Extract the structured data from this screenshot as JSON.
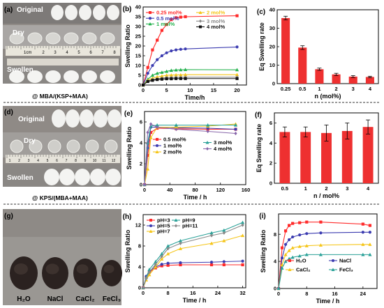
{
  "panels": [
    {
      "id": "a",
      "label": "(a)",
      "captions": {
        "original": "Original",
        "dry": "Dry",
        "swollen": "Swollen",
        "ruler": "1cm"
      },
      "ruler_numbers": [
        "2",
        "3",
        "4",
        "5",
        "6",
        "7",
        "8"
      ],
      "footer": "@ MBA/(KSP+MAA)"
    },
    {
      "id": "d",
      "label": "(d)",
      "captions": {
        "original": "Original",
        "dry": "Dry",
        "swollen": "Swollen"
      },
      "ruler_numbers": [
        "1",
        "2",
        "3",
        "4",
        "5",
        "6",
        "7",
        "8",
        "9",
        "10",
        "11",
        "12"
      ],
      "footer": "@ KPS/(MBA+MAA)"
    },
    {
      "id": "g",
      "label": "(g)",
      "captions": {
        "items": [
          "H₂O",
          "NaCl",
          "CaCl₂",
          "FeCl₃"
        ]
      }
    }
  ],
  "chart_data": [
    {
      "id": "b",
      "label": "(b)",
      "type": "line",
      "xlabel": "Time/h",
      "ylabel": "Swelling Ratio",
      "xlim": [
        0,
        22
      ],
      "ylim": [
        0,
        40
      ],
      "xticks": [
        0,
        5,
        10,
        15,
        20
      ],
      "yticks": [
        0,
        5,
        10,
        15,
        20,
        25,
        30,
        35,
        40
      ],
      "series": [
        {
          "name": "0.25 mol%",
          "color": "#ff2a2a",
          "marker": "square",
          "x": [
            0,
            1,
            2,
            3,
            4,
            5,
            6,
            7,
            8,
            9,
            20
          ],
          "y": [
            0,
            9,
            18,
            23,
            28,
            31,
            33.5,
            34.5,
            34.8,
            35,
            35.5
          ]
        },
        {
          "name": "0.5 mol%",
          "color": "#3b3bb0",
          "marker": "circle",
          "x": [
            0,
            1,
            2,
            3,
            4,
            5,
            6,
            7,
            8,
            9,
            20
          ],
          "y": [
            0,
            6,
            10,
            13,
            15,
            16.5,
            17.5,
            18,
            18.3,
            18.5,
            19.5
          ]
        },
        {
          "name": "1 mol%",
          "color": "#22b14c",
          "marker": "triangle",
          "x": [
            0,
            1,
            2,
            3,
            4,
            5,
            6,
            7,
            8,
            9,
            20
          ],
          "y": [
            0,
            3,
            5,
            6,
            6.5,
            7,
            7.5,
            7.7,
            7.8,
            7.9,
            7.8
          ]
        },
        {
          "name": "2 mol%",
          "color": "#f5c518",
          "marker": "triangle",
          "x": [
            0,
            1,
            2,
            3,
            4,
            5,
            6,
            7,
            8,
            9,
            20
          ],
          "y": [
            0,
            2.5,
            3.5,
            4.2,
            4.6,
            5,
            5.1,
            5.2,
            5.2,
            5.3,
            5.3
          ]
        },
        {
          "name": "3 mol%",
          "color": "#888888",
          "marker": "diamond",
          "x": [
            0,
            1,
            2,
            3,
            4,
            5,
            6,
            7,
            8,
            9,
            20
          ],
          "y": [
            0,
            2,
            2.8,
            3.2,
            3.5,
            3.8,
            3.8,
            3.9,
            3.9,
            4,
            4
          ]
        },
        {
          "name": "4 mol%",
          "color": "#111111",
          "marker": "square",
          "x": [
            0,
            1,
            2,
            3,
            4,
            5,
            6,
            7,
            8,
            9,
            20
          ],
          "y": [
            0,
            1.8,
            2.4,
            2.8,
            3,
            3.2,
            3.2,
            3.3,
            3.3,
            3.3,
            3.3
          ]
        }
      ],
      "legend": "top-left"
    },
    {
      "id": "c",
      "label": "(c)",
      "type": "bar",
      "xlabel": "n (mol%)",
      "ylabel": "Eq Swelling rate",
      "categories": [
        "0.25",
        "0.5",
        "1",
        "2",
        "3",
        "4"
      ],
      "values": [
        35.5,
        19.5,
        7.8,
        5,
        3.8,
        3.6
      ],
      "errors": [
        1,
        1,
        0.6,
        0.6,
        0.5,
        0.4
      ],
      "ylim": [
        0,
        40
      ],
      "yticks": [
        0,
        10,
        20,
        30,
        40
      ],
      "color": "#ee3030"
    },
    {
      "id": "e",
      "label": "(e)",
      "type": "line",
      "xlabel": "Time / h",
      "ylabel": "Swelling Ratio",
      "xlim": [
        0,
        160
      ],
      "ylim": [
        0,
        7
      ],
      "xticks": [
        0,
        40,
        80,
        120,
        160
      ],
      "yticks": [
        0,
        2,
        4,
        6
      ],
      "series": [
        {
          "name": "0.5 mol%",
          "color": "#ff2a2a",
          "marker": "square",
          "x": [
            0,
            5,
            10,
            20,
            50,
            100,
            144
          ],
          "y": [
            0,
            2.8,
            5,
            5.4,
            5.35,
            5.3,
            5.3
          ]
        },
        {
          "name": "1 mol%",
          "color": "#3b3bb0",
          "marker": "circle",
          "x": [
            0,
            5,
            10,
            20,
            50,
            100,
            144
          ],
          "y": [
            0,
            3.5,
            5.5,
            5.5,
            5.45,
            5.4,
            5.3
          ]
        },
        {
          "name": "2 mol%",
          "color": "#f5c518",
          "marker": "triangle",
          "x": [
            0,
            5,
            10,
            20,
            50,
            100,
            144
          ],
          "y": [
            0,
            1.5,
            4.5,
            5.5,
            5.5,
            5.6,
            5.8
          ]
        },
        {
          "name": "3 mol%",
          "color": "#2aa198",
          "marker": "triangle",
          "x": [
            0,
            5,
            10,
            20,
            50,
            100,
            144
          ],
          "y": [
            0,
            4,
            5.6,
            5.7,
            5.7,
            5.7,
            5.7
          ]
        },
        {
          "name": "4 mol%",
          "color": "#8866aa",
          "marker": "diamond",
          "x": [
            0,
            5,
            10,
            20,
            50,
            100,
            144
          ],
          "y": [
            0,
            5,
            5.8,
            5.5,
            5.3,
            5.1,
            4.9
          ]
        }
      ],
      "legend": "bottom-center"
    },
    {
      "id": "f",
      "label": "(f)",
      "type": "bar",
      "xlabel": "n / mol%",
      "ylabel": "Eq Swelling rate",
      "categories": [
        "0.5",
        "1",
        "2",
        "3",
        "4"
      ],
      "values": [
        5.1,
        5.1,
        5.0,
        5.2,
        5.6
      ],
      "errors": [
        0.5,
        0.5,
        0.8,
        0.8,
        0.7
      ],
      "ylim": [
        0,
        7
      ],
      "yticks": [
        0,
        2,
        4,
        6
      ],
      "color": "#ee3030"
    },
    {
      "id": "h",
      "label": "(h)",
      "type": "line",
      "xlabel": "Time / h",
      "ylabel": "Swelling Ratio",
      "xlim": [
        0,
        33
      ],
      "ylim": [
        0,
        14
      ],
      "xticks": [
        0,
        8,
        16,
        24,
        32
      ],
      "yticks": [
        0,
        4,
        8,
        12
      ],
      "series": [
        {
          "name": "pH=3",
          "color": "#ff2a2a",
          "marker": "square",
          "x": [
            0,
            1,
            2,
            4,
            6,
            8,
            12,
            22,
            26,
            32
          ],
          "y": [
            0,
            2,
            3,
            3.8,
            4.2,
            4.3,
            4.4,
            4.4,
            4.4,
            4.4
          ]
        },
        {
          "name": "pH=5",
          "color": "#3b3bb0",
          "marker": "circle",
          "x": [
            0,
            1,
            2,
            4,
            6,
            8,
            12,
            22,
            26,
            32
          ],
          "y": [
            0,
            2.2,
            3.2,
            4,
            4.5,
            4.7,
            4.8,
            4.9,
            5,
            5.1
          ]
        },
        {
          "name": "pH=7",
          "color": "#f5c518",
          "marker": "triangle",
          "x": [
            0,
            1,
            2,
            4,
            6,
            8,
            12,
            22,
            26,
            32
          ],
          "y": [
            0,
            1.5,
            2.5,
            4,
            5.5,
            6.5,
            7.5,
            8.5,
            9,
            10
          ]
        },
        {
          "name": "pH=9",
          "color": "#2aa198",
          "marker": "triangle",
          "x": [
            0,
            1,
            2,
            4,
            6,
            8,
            12,
            22,
            26,
            32
          ],
          "y": [
            0,
            2,
            3.5,
            5,
            6.5,
            8,
            9,
            10.5,
            11,
            12.5
          ]
        },
        {
          "name": "pH=11",
          "color": "#888888",
          "marker": "diamond",
          "x": [
            0,
            1,
            2,
            4,
            6,
            8,
            12,
            22,
            26,
            32
          ],
          "y": [
            0,
            1.8,
            3,
            4.5,
            6,
            7.5,
            8.5,
            10,
            10.5,
            12
          ]
        }
      ],
      "legend": "top-left"
    },
    {
      "id": "i",
      "label": "(i)",
      "type": "line",
      "xlabel": "Time / h",
      "ylabel": "Swelling Ratio",
      "xlim": [
        0,
        28
      ],
      "ylim": [
        0,
        11
      ],
      "xticks": [
        0,
        8,
        16,
        24
      ],
      "yticks": [
        0,
        4,
        8
      ],
      "series": [
        {
          "name": "H₂O",
          "color": "#ff2a2a",
          "marker": "square",
          "x": [
            0,
            1,
            2,
            3,
            4,
            6,
            8,
            12,
            24,
            26
          ],
          "y": [
            0,
            6,
            8.5,
            9.3,
            9.6,
            9.7,
            9.8,
            9.8,
            9.5,
            9.3
          ]
        },
        {
          "name": "NaCl",
          "color": "#3b3bb0",
          "marker": "circle",
          "x": [
            0,
            1,
            2,
            3,
            4,
            6,
            8,
            12,
            24,
            26
          ],
          "y": [
            0,
            4.5,
            6.5,
            7.2,
            7.6,
            7.9,
            8.1,
            8.2,
            8.3,
            8.3
          ]
        },
        {
          "name": "CaCl₂",
          "color": "#f5c518",
          "marker": "triangle",
          "x": [
            0,
            1,
            2,
            3,
            4,
            6,
            8,
            12,
            24,
            26
          ],
          "y": [
            0,
            3.5,
            5,
            5.6,
            6,
            6.2,
            6.3,
            6.4,
            6.5,
            6.5
          ]
        },
        {
          "name": "FeCl₃",
          "color": "#2aa198",
          "marker": "triangle",
          "x": [
            0,
            1,
            2,
            3,
            4,
            6,
            8,
            12,
            24,
            26
          ],
          "y": [
            0,
            3,
            4,
            4.4,
            4.6,
            4.8,
            5,
            5,
            5,
            5
          ]
        }
      ],
      "legend": "bottom-right"
    }
  ]
}
